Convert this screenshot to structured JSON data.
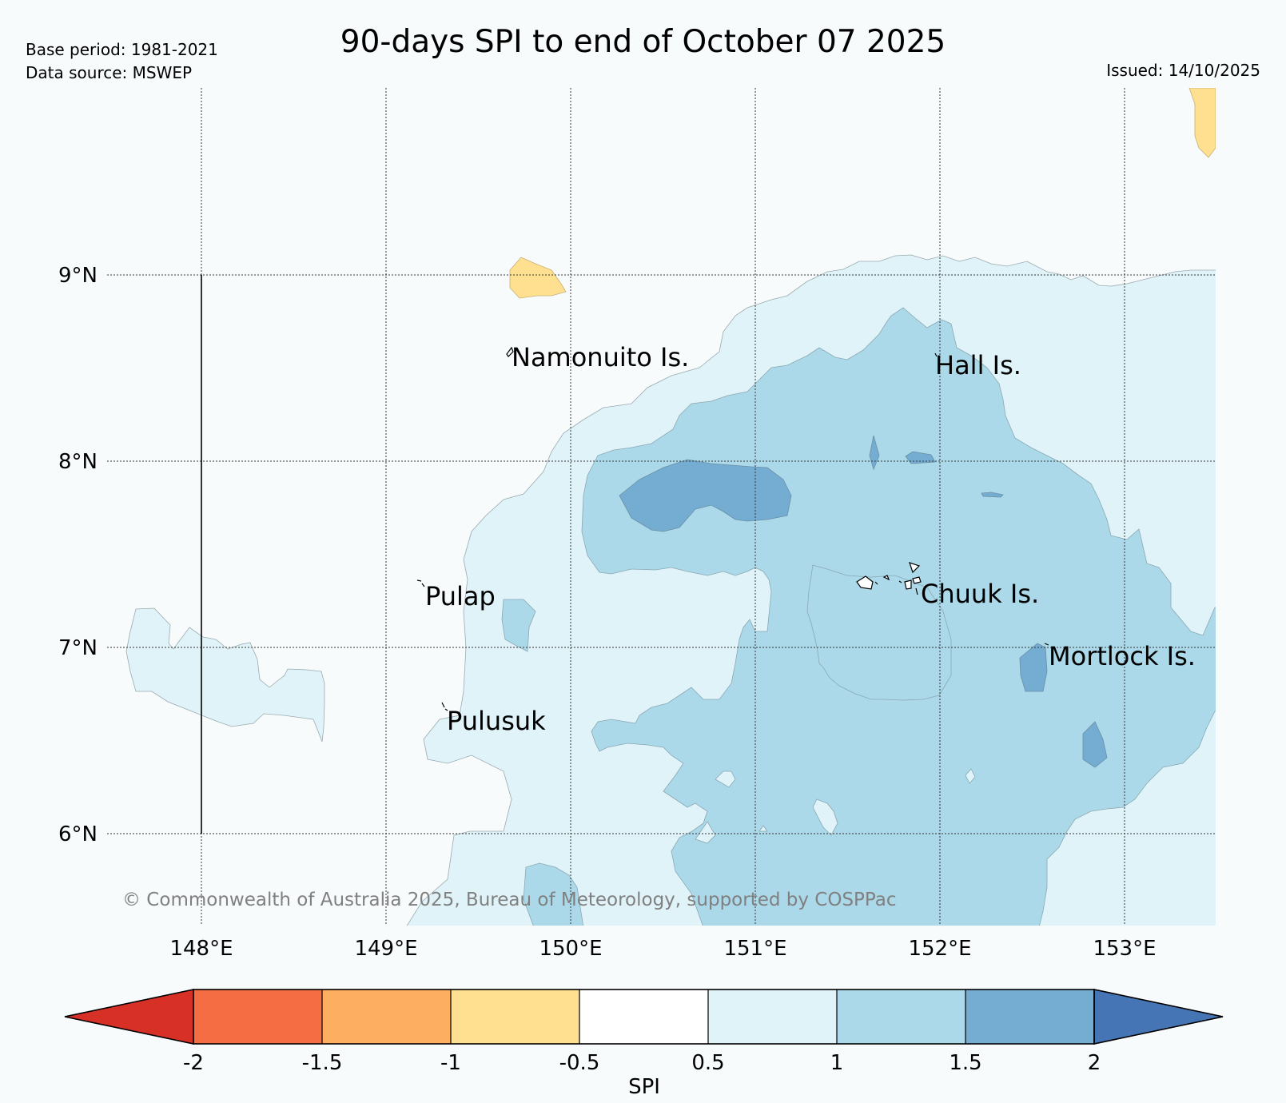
{
  "header": {
    "base_period": "Base period: 1981-2021",
    "data_source": "Data source: MSWEP",
    "title": "90-days SPI to end of October 07 2025",
    "issued": "Issued: 14/10/2025"
  },
  "map": {
    "lon_ticks": [
      "148°E",
      "149°E",
      "150°E",
      "151°E",
      "152°E",
      "153°E"
    ],
    "lat_ticks": [
      "9°N",
      "8°N",
      "7°N",
      "6°N"
    ],
    "places": [
      {
        "id": "namonuito",
        "name": "Namonuito Is."
      },
      {
        "id": "hall",
        "name": "Hall Is."
      },
      {
        "id": "pulap",
        "name": "Pulap"
      },
      {
        "id": "chuuk",
        "name": "Chuuk Is."
      },
      {
        "id": "mortlock",
        "name": "Mortlock Is."
      },
      {
        "id": "pulusuk",
        "name": "Pulusuk"
      }
    ],
    "copyright": "© Commonwealth of Australia 2025, Bureau of Meteorology, supported by COSPPac",
    "colors": {
      "background": "#f7fbfc",
      "spi_0_5_to_1": "#e0f3f8",
      "spi_1_to_1_5": "#abd9e9",
      "spi_1_5_to_2": "#74add1",
      "spi_neg1_to_neg0_5": "#fee090"
    }
  },
  "colorbar": {
    "label": "SPI",
    "tick_labels": [
      "-2",
      "-1.5",
      "-1",
      "-0.5",
      "0.5",
      "1",
      "1.5",
      "2"
    ],
    "bins": [
      {
        "range": "< -2",
        "color": "#d73027"
      },
      {
        "range": "-2 to -1.5",
        "color": "#f46d43"
      },
      {
        "range": "-1.5 to -1",
        "color": "#fdae61"
      },
      {
        "range": "-1 to -0.5",
        "color": "#fee090"
      },
      {
        "range": "-0.5 to 0.5",
        "color": "#ffffff"
      },
      {
        "range": "0.5 to 1",
        "color": "#e0f3f8"
      },
      {
        "range": "1 to 1.5",
        "color": "#abd9e9"
      },
      {
        "range": "1.5 to 2",
        "color": "#74add1"
      },
      {
        "range": "> 2",
        "color": "#4575b4"
      }
    ]
  }
}
